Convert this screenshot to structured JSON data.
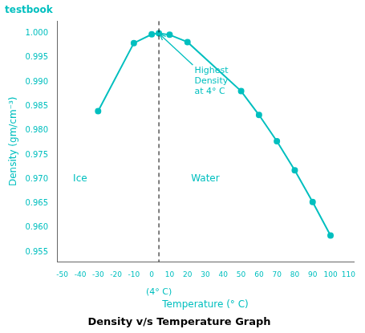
{
  "chart_data": {
    "type": "line",
    "title": "Density v/s Temperature Graph",
    "subtitle": "testbook",
    "xlabel": "Temperature (° C)",
    "ylabel": "Density (gm/cm⁻³)",
    "x": [
      -30,
      -10,
      0,
      4,
      10,
      20,
      50,
      60,
      70,
      80,
      90,
      100
    ],
    "values": [
      0.984,
      0.998,
      0.9998,
      1.0,
      0.9997,
      0.9982,
      0.9881,
      0.9832,
      0.9778,
      0.9718,
      0.9653,
      0.9584
    ],
    "color": "#00BFBF",
    "marker": "circle",
    "line_style": "solid",
    "xlim": [
      -53,
      113
    ],
    "ylim": [
      0.953,
      1.0025
    ],
    "xticks": [
      -50,
      -40,
      -30,
      -20,
      -10,
      0,
      10,
      20,
      30,
      40,
      50,
      60,
      70,
      80,
      90,
      100,
      110
    ],
    "yticks": [
      0.955,
      {
        "value": 0.96,
        "label": "0.960"
      },
      0.965,
      {
        "value": 0.97,
        "label": "0.970"
      },
      0.975,
      {
        "value": 0.98,
        "label": "0.980"
      },
      0.985,
      {
        "value": 0.99,
        "label": "0.990"
      },
      0.995,
      {
        "value": 1,
        "label": "1.000"
      }
    ],
    "grid": false,
    "reference_lines": [
      {
        "x": 4,
        "label": "(4° C)"
      }
    ],
    "annotations": [
      {
        "text": "Highest\nDensity\nat 4° C",
        "x": 23,
        "y": 0.9935,
        "arrow_to": [
          4.5,
          0.9998
        ]
      },
      {
        "text": "Ice",
        "x": -44,
        "y": 0.97
      },
      {
        "text": "Water",
        "x": 22,
        "y": 0.97
      }
    ]
  }
}
